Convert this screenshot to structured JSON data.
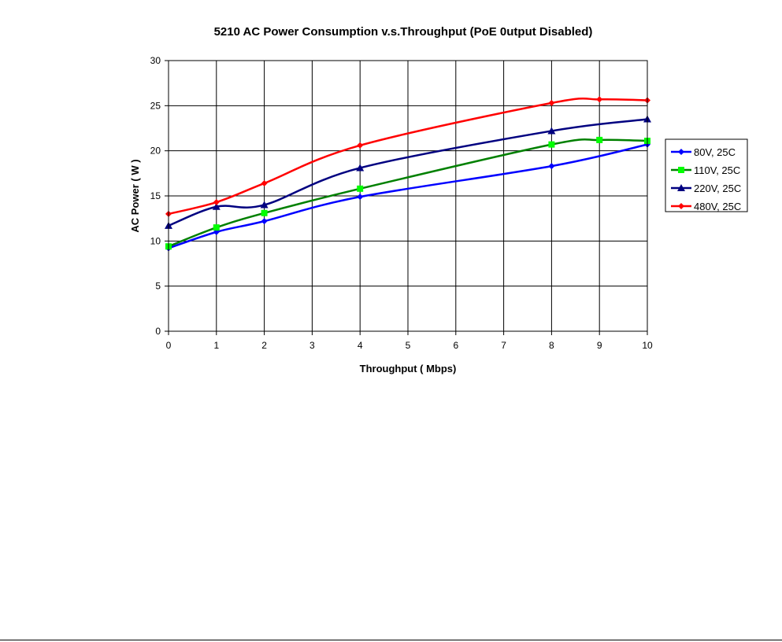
{
  "chart_data": {
    "type": "line",
    "title": "5210 AC Power Consumption v.s.Throughput (PoE 0utput Disabled)",
    "xlabel": "Throughput ( Mbps)",
    "ylabel": "AC Power ( W )",
    "xlim": [
      0,
      10
    ],
    "ylim": [
      0,
      30
    ],
    "xticks": [
      "0",
      "1",
      "2",
      "3",
      "4",
      "5",
      "6",
      "7",
      "8",
      "9",
      "10"
    ],
    "yticks": [
      "0",
      "5",
      "10",
      "15",
      "20",
      "25",
      "30"
    ],
    "grid": true,
    "legend_position": "right",
    "series": [
      {
        "name": "80V, 25C",
        "color": "#0000FF",
        "marker": "diamond",
        "points": [
          [
            0,
            9.2
          ],
          [
            1,
            11.0
          ],
          [
            2,
            12.2
          ],
          [
            4,
            14.9
          ],
          [
            8,
            18.3
          ],
          [
            10,
            20.7
          ]
        ]
      },
      {
        "name": "110V, 25C",
        "color": "#008000",
        "marker_color": "#00FF00",
        "marker": "square",
        "points": [
          [
            0,
            9.4
          ],
          [
            1,
            11.5
          ],
          [
            2,
            13.1
          ],
          [
            4,
            15.8
          ],
          [
            8,
            20.7
          ],
          [
            9,
            21.2
          ],
          [
            10,
            21.1
          ]
        ]
      },
      {
        "name": "220V, 25C",
        "color": "#000080",
        "marker": "triangle",
        "points": [
          [
            0,
            11.7
          ],
          [
            1,
            13.8
          ],
          [
            2,
            14.0
          ],
          [
            4,
            18.1
          ],
          [
            8,
            22.2
          ],
          [
            10,
            23.5
          ]
        ]
      },
      {
        "name": "480V, 25C",
        "color": "#FF0000",
        "marker": "diamond",
        "points": [
          [
            0,
            13.0
          ],
          [
            1,
            14.3
          ],
          [
            2,
            16.4
          ],
          [
            4,
            20.6
          ],
          [
            8,
            25.3
          ],
          [
            9,
            25.7
          ],
          [
            10,
            25.6
          ]
        ]
      }
    ]
  }
}
